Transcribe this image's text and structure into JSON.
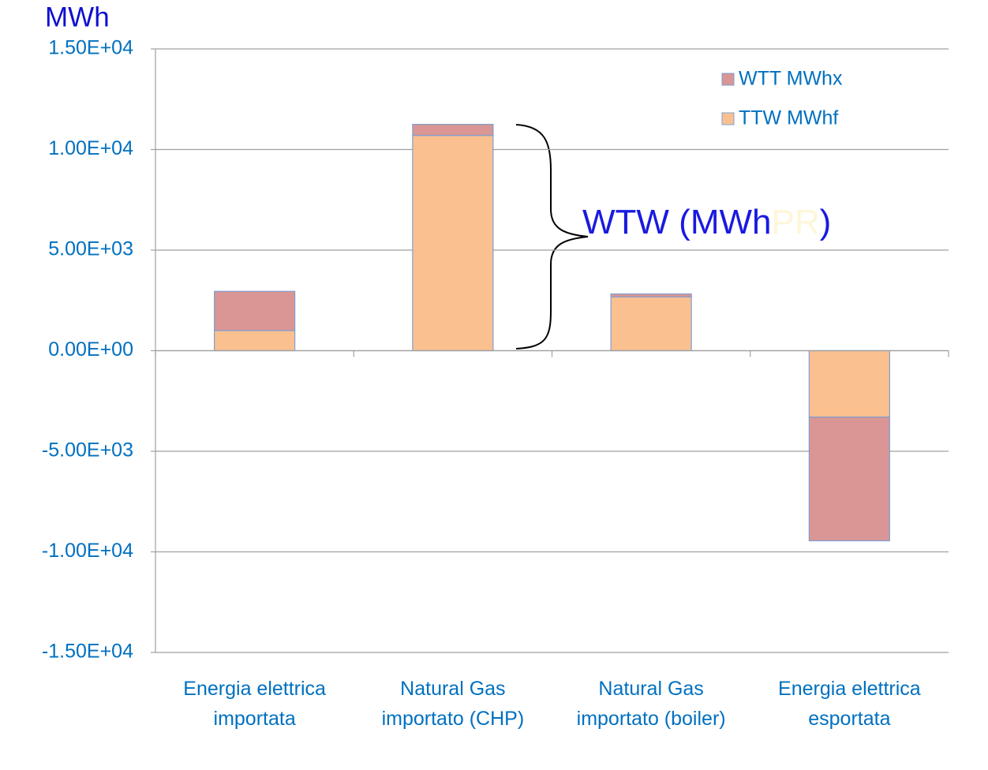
{
  "chart_data": {
    "type": "stacked_bar",
    "y_label": "MWh",
    "annotation": [
      "WTW  (MWh",
      "PR",
      ")"
    ],
    "categories": [
      [
        "Energia  elettrica",
        "importata"
      ],
      [
        "Natural  Gas",
        "importato  (CHP)"
      ],
      [
        "Natural  Gas",
        "importato  (boiler)"
      ],
      [
        "Energia  elettrica",
        "esportata"
      ]
    ],
    "series": [
      {
        "name": "TTW MWhf",
        "color": "#fac090",
        "values": [
          1000,
          10700,
          2670,
          -3300
        ]
      },
      {
        "name": "WTT MWhx",
        "color": "#d99694",
        "values": [
          1950,
          550,
          150,
          -6150
        ]
      }
    ],
    "ylim": [
      -15000,
      15000
    ],
    "yticks": [
      {
        "value": -15000,
        "label": "-1.50E+04"
      },
      {
        "value": -10000,
        "label": "-1.00E+04"
      },
      {
        "value": -5000,
        "label": "-5.00E+03"
      },
      {
        "value": 0,
        "label": "0.00E+00"
      },
      {
        "value": 5000,
        "label": "5.00E+03"
      },
      {
        "value": 10000,
        "label": "1.00E+04"
      },
      {
        "value": 15000,
        "label": "1.50E+04"
      }
    ],
    "grid": true,
    "legend": "top-right"
  }
}
